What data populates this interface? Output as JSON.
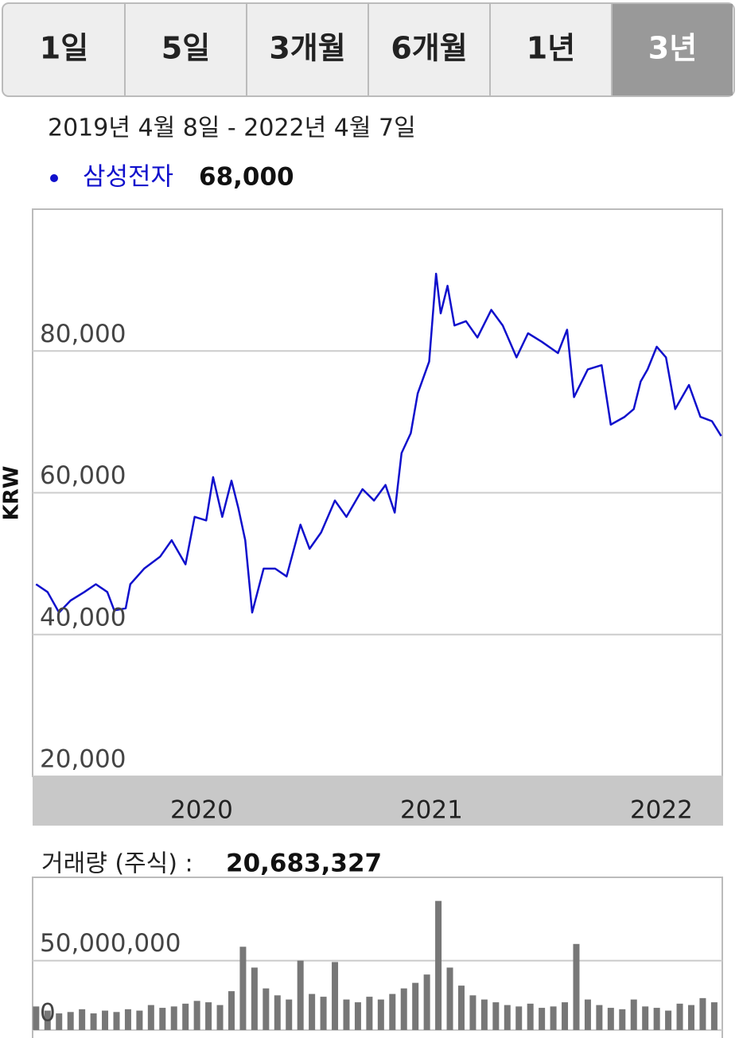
{
  "tabs": [
    "1일",
    "5일",
    "3개월",
    "6개월",
    "1년",
    "3년"
  ],
  "active_tab": 5,
  "date_range": "2019년 4월 8일 - 2022년 4월 7일",
  "current_value": "68,000",
  "volume_label": "거래량 (주식) :",
  "current_volume": "20,683,327",
  "chart_data": [
    {
      "type": "line",
      "y_label": "KRW",
      "x": [
        2019.28,
        2019.33,
        2019.38,
        2019.43,
        2019.49,
        2019.54,
        2019.59,
        2019.62,
        2019.67,
        2019.69,
        2019.75,
        2019.82,
        2019.87,
        2019.93,
        2019.97,
        2020.02,
        2020.05,
        2020.09,
        2020.13,
        2020.16,
        2020.19,
        2020.22,
        2020.27,
        2020.32,
        2020.37,
        2020.43,
        2020.47,
        2020.52,
        2020.58,
        2020.63,
        2020.7,
        2020.75,
        2020.8,
        2020.84,
        2020.87,
        2020.91,
        2020.94,
        2020.99,
        2021.02,
        2021.04,
        2021.07,
        2021.1,
        2021.15,
        2021.2,
        2021.26,
        2021.31,
        2021.37,
        2021.42,
        2021.48,
        2021.55,
        2021.59,
        2021.62,
        2021.68,
        2021.74,
        2021.78,
        2021.84,
        2021.88,
        2021.91,
        2021.94,
        2021.98,
        2022.02,
        2022.06,
        2022.12,
        2022.17,
        2022.22,
        2022.26
      ],
      "series": [
        {
          "name": "삼성전자",
          "color": "#1010cc",
          "values": [
            47100,
            46000,
            43100,
            44800,
            46000,
            47100,
            46000,
            43400,
            43700,
            47100,
            49300,
            51000,
            53300,
            49900,
            56600,
            56100,
            62200,
            56600,
            61700,
            57800,
            53300,
            43100,
            49300,
            49300,
            48200,
            55500,
            52100,
            54400,
            58900,
            56600,
            60500,
            58900,
            61100,
            57200,
            65600,
            68400,
            74000,
            78500,
            90900,
            85300,
            89200,
            83600,
            84200,
            81900,
            85800,
            83600,
            79100,
            82500,
            81300,
            79700,
            83000,
            73500,
            77400,
            78000,
            69600,
            70700,
            71800,
            75700,
            77400,
            80600,
            79100,
            71800,
            75200,
            70700,
            70100,
            68000
          ]
        }
      ],
      "xlim": [
        2019.265,
        2022.265
      ],
      "xticks": [
        2020,
        2021,
        2022
      ],
      "ylim": [
        20000,
        100000
      ],
      "yticks": [
        {
          "value": 20000,
          "label": "20,000"
        },
        {
          "value": 40000,
          "label": "40,000"
        },
        {
          "value": 60000,
          "label": "60,000"
        },
        {
          "value": 80000,
          "label": "80,000"
        }
      ],
      "grid": true
    },
    {
      "type": "bar",
      "color": "#777777",
      "x": [
        2019.28,
        2019.33,
        2019.38,
        2019.43,
        2019.48,
        2019.53,
        2019.58,
        2019.63,
        2019.68,
        2019.73,
        2019.78,
        2019.83,
        2019.88,
        2019.93,
        2019.98,
        2020.03,
        2020.08,
        2020.13,
        2020.18,
        2020.23,
        2020.28,
        2020.33,
        2020.38,
        2020.43,
        2020.48,
        2020.53,
        2020.58,
        2020.63,
        2020.68,
        2020.73,
        2020.78,
        2020.83,
        2020.88,
        2020.93,
        2020.98,
        2021.03,
        2021.08,
        2021.13,
        2021.18,
        2021.23,
        2021.28,
        2021.33,
        2021.38,
        2021.43,
        2021.48,
        2021.53,
        2021.58,
        2021.63,
        2021.68,
        2021.73,
        2021.78,
        2021.83,
        2021.88,
        2021.93,
        2021.98,
        2022.03,
        2022.08,
        2022.13,
        2022.18,
        2022.23
      ],
      "values": [
        17000000,
        14000000,
        12000000,
        13000000,
        15000000,
        12000000,
        14000000,
        13000000,
        15000000,
        14000000,
        18000000,
        16000000,
        17000000,
        19000000,
        21000000,
        20000000,
        18000000,
        28000000,
        60000000,
        45000000,
        30000000,
        25000000,
        22000000,
        50000000,
        26000000,
        24000000,
        49000000,
        22000000,
        20000000,
        24000000,
        22000000,
        26000000,
        30000000,
        34000000,
        40000000,
        93000000,
        45000000,
        32000000,
        25000000,
        22000000,
        20000000,
        18000000,
        17000000,
        19000000,
        16000000,
        17000000,
        20000000,
        62000000,
        22000000,
        18000000,
        16000000,
        15000000,
        22000000,
        17000000,
        16000000,
        14000000,
        19000000,
        18000000,
        23000000,
        20000000
      ],
      "xlim": [
        2019.265,
        2022.265
      ],
      "ylim": [
        0,
        110000000
      ],
      "yticks": [
        {
          "value": 0,
          "label": "0"
        },
        {
          "value": 50000000,
          "label": "50,000,000"
        }
      ],
      "grid": true
    }
  ]
}
